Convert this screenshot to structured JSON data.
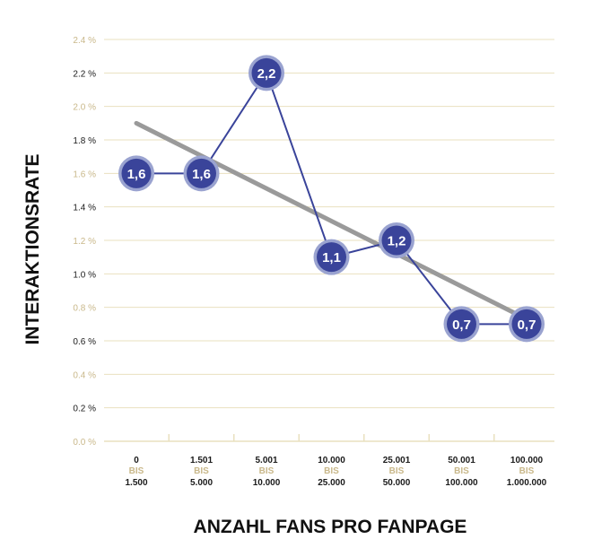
{
  "chart_data": {
    "type": "line",
    "xlabel": "ANZAHL FANS PRO FANPAGE",
    "ylabel": "INTERAKTIONSRATE",
    "categories": [
      {
        "from": "0",
        "sep": "BIS",
        "to": "1.500"
      },
      {
        "from": "1.501",
        "sep": "BIS",
        "to": "5.000"
      },
      {
        "from": "5.001",
        "sep": "BIS",
        "to": "10.000"
      },
      {
        "from": "10.000",
        "sep": "BIS",
        "to": "25.000"
      },
      {
        "from": "25.001",
        "sep": "BIS",
        "to": "50.000"
      },
      {
        "from": "50.001",
        "sep": "BIS",
        "to": "100.000"
      },
      {
        "from": "100.000",
        "sep": "BIS",
        "to": "1.000.000"
      }
    ],
    "series": [
      {
        "values": [
          1.6,
          1.6,
          2.2,
          1.1,
          1.2,
          0.7,
          0.7
        ],
        "labels": [
          "1,6",
          "1,6",
          "2,2",
          "1,1",
          "1,2",
          "0,7",
          "0,7"
        ]
      }
    ],
    "trendline": {
      "start": 1.9,
      "end": 0.73
    },
    "ylim": [
      0,
      2.4
    ],
    "yticks": [
      {
        "value": 0.0,
        "label": "0.0 %"
      },
      {
        "value": 0.2,
        "label": "0.2 %"
      },
      {
        "value": 0.4,
        "label": "0.4 %"
      },
      {
        "value": 0.6,
        "label": "0.6 %"
      },
      {
        "value": 0.8,
        "label": "0.8 %"
      },
      {
        "value": 1.0,
        "label": "1.0 %"
      },
      {
        "value": 1.2,
        "label": "1.2 %"
      },
      {
        "value": 1.4,
        "label": "1.4 %"
      },
      {
        "value": 1.6,
        "label": "1.6 %"
      },
      {
        "value": 1.8,
        "label": "1.8 %"
      },
      {
        "value": 2.0,
        "label": "2.0 %"
      },
      {
        "value": 2.2,
        "label": "2.2 %"
      },
      {
        "value": 2.4,
        "label": "2.4 %"
      }
    ],
    "grid": true,
    "colors": {
      "line": "#3a449a",
      "marker_fill": "#3a449a",
      "marker_ring": "#9aa3d0",
      "trend": "#9a9a9a",
      "grid": "#e9e0bf",
      "tick_gold": "#c9b88a",
      "tick_dark": "#1a1a1a"
    }
  }
}
